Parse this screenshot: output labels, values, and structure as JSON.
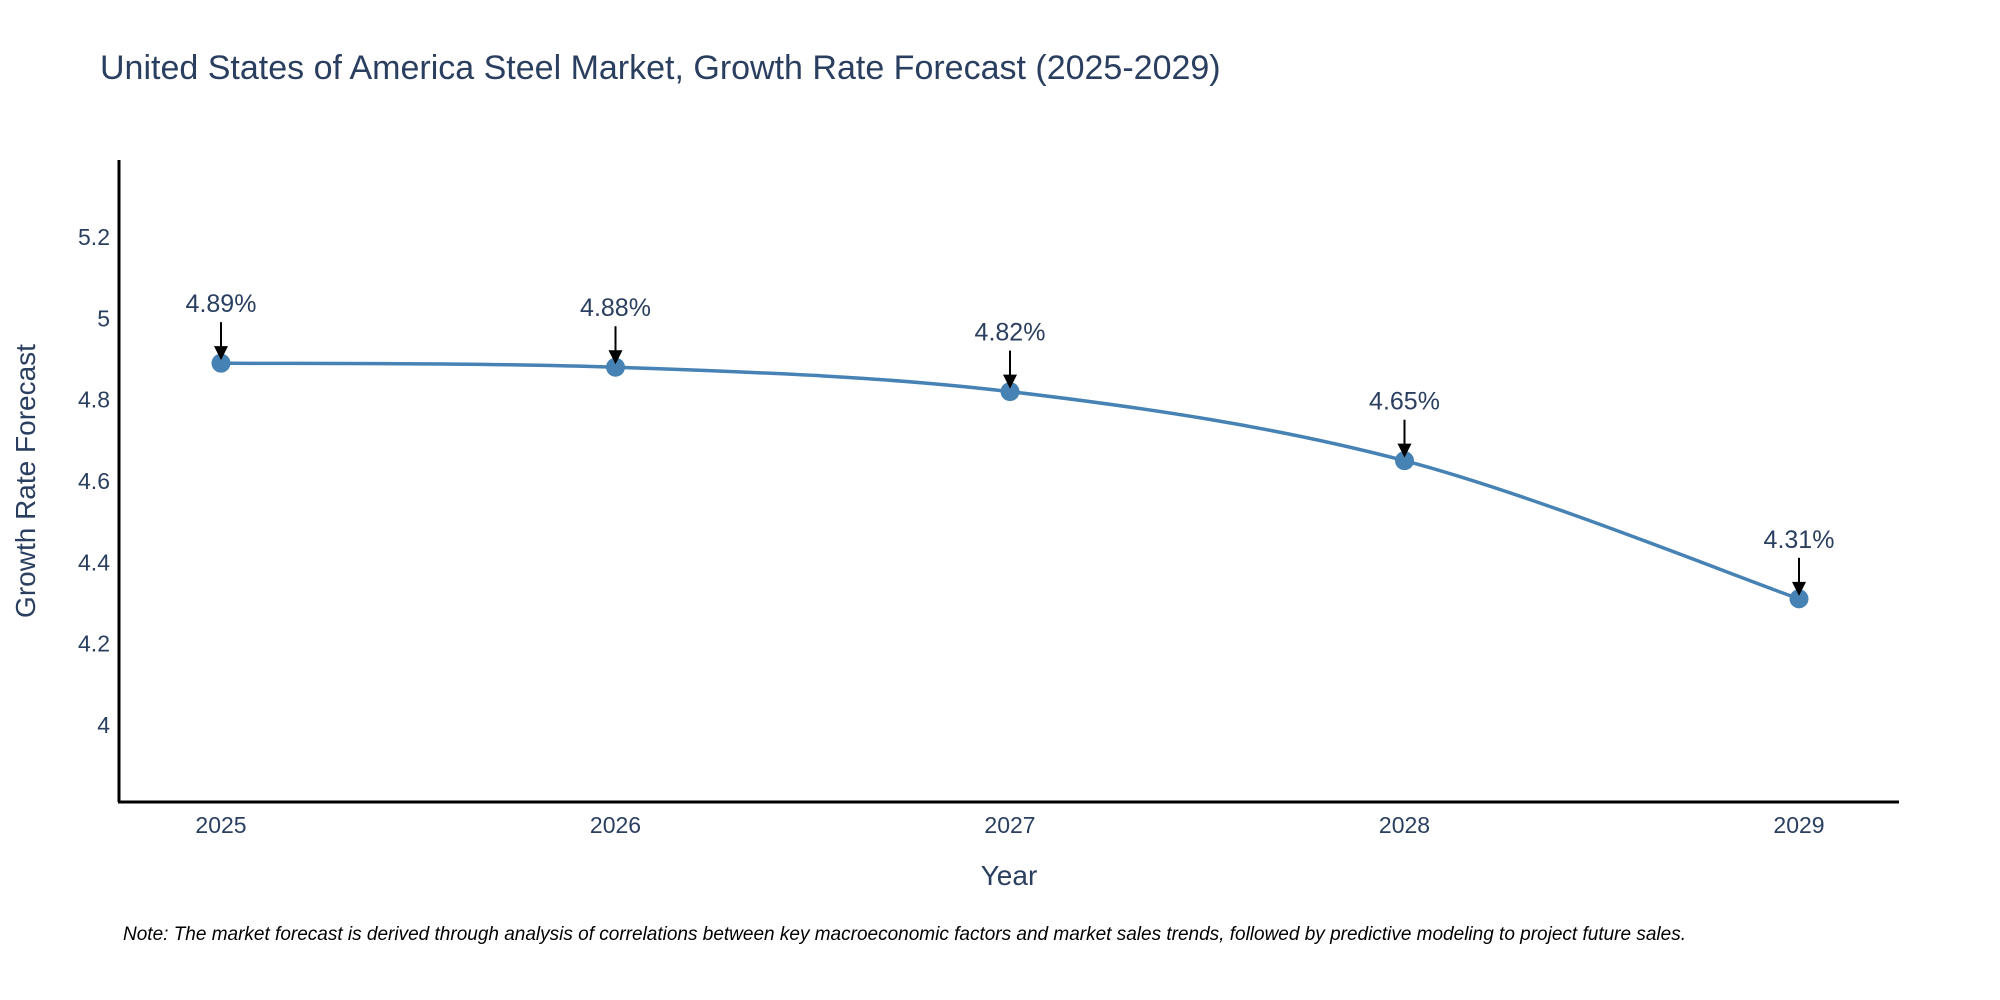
{
  "chart_data": {
    "type": "line",
    "title": "United States of America Steel Market, Growth Rate Forecast (2025-2029)",
    "xlabel": "Year",
    "ylabel": "Growth Rate Forecast",
    "categories": [
      "2025",
      "2026",
      "2027",
      "2028",
      "2029"
    ],
    "series": [
      {
        "name": "Growth Rate Forecast",
        "values": [
          4.89,
          4.88,
          4.82,
          4.65,
          4.31
        ],
        "labels": [
          "4.89%",
          "4.88%",
          "4.82%",
          "4.65%",
          "4.31%"
        ],
        "color": "#4682b4"
      }
    ],
    "ylim": [
      3.81,
      5.39
    ],
    "yticks": [
      4,
      4.2,
      4.4,
      4.6,
      4.8,
      5,
      5.2
    ],
    "ytick_labels": [
      "4",
      "4.2",
      "4.4",
      "4.6",
      "4.8",
      "5",
      "5.2"
    ],
    "grid": false,
    "note": "Note: The market forecast is derived through analysis of correlations between key macroeconomic factors and market sales trends, followed by predictive modeling to project future sales."
  }
}
